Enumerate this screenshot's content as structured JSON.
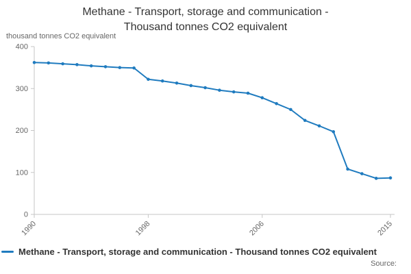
{
  "page": {
    "source_label": "Source:"
  },
  "colors": {
    "line": "#1f7bbf",
    "title_text": "#333333",
    "axis_text": "#666666",
    "axis_line": "#c6c6c6"
  },
  "chart_data": {
    "type": "line",
    "title": "Methane - Transport, storage and communication - Thousand tonnes CO2 equivalent",
    "ylabel": "thousand tonnes CO2 equivalent",
    "xlabel": "",
    "ylim": [
      0,
      400
    ],
    "yticks": [
      0,
      100,
      200,
      300,
      400
    ],
    "xticks": [
      1990,
      1998,
      2006,
      2015
    ],
    "grid": false,
    "legend_position": "bottom-left",
    "marker": "circle",
    "x": [
      1990,
      1991,
      1992,
      1993,
      1994,
      1995,
      1996,
      1997,
      1998,
      1999,
      2000,
      2001,
      2002,
      2003,
      2004,
      2005,
      2006,
      2007,
      2008,
      2009,
      2010,
      2011,
      2012,
      2013,
      2014,
      2015
    ],
    "series": [
      {
        "name": "Methane - Transport, storage and communication - Thousand tonnes CO2 equivalent",
        "values": [
          362,
          361,
          359,
          357,
          354,
          352,
          350,
          349,
          322,
          318,
          313,
          307,
          302,
          296,
          292,
          289,
          278,
          264,
          250,
          224,
          211,
          197,
          108,
          97,
          86,
          87
        ]
      }
    ]
  }
}
